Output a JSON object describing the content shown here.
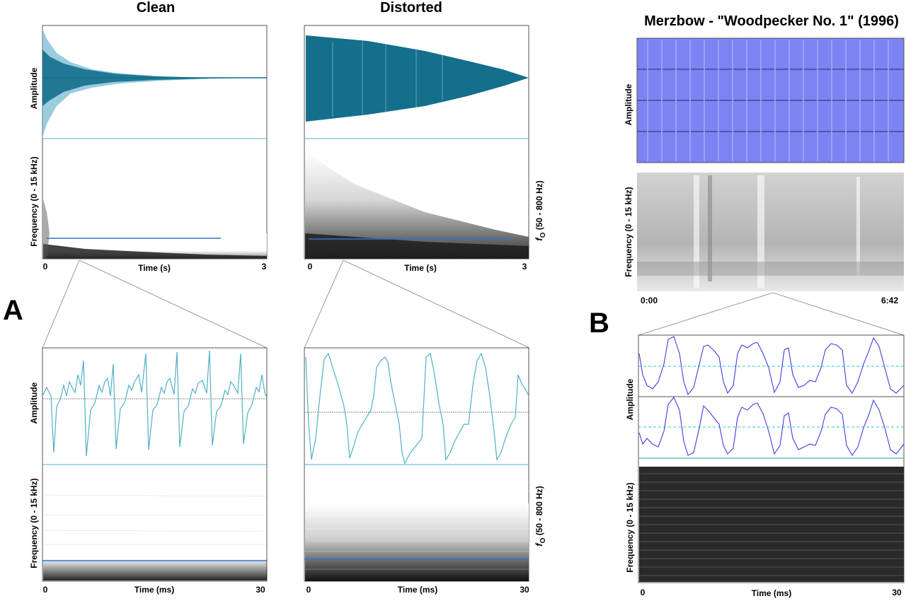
{
  "figure": {
    "panel_a_label": "A",
    "panel_b_label": "B",
    "clean_title": "Clean",
    "distorted_title": "Distorted",
    "merzbow_title": "Merzbow - \"Woodpecker No. 1\" (1996)",
    "amplitude_label": "Amplitude",
    "frequency_label": "Frequency (0 - 15 kHz)",
    "f0_symbol": "f",
    "f0_subscript": "O",
    "f0_range": "(50 - 800 Hz)",
    "time_s_label": "Time (s)",
    "time_ms_label": "Time (ms)",
    "tick_zero": "0",
    "tick_three": "3",
    "tick_thirty": "30",
    "tick_start": "0:00",
    "tick_end": "6:42"
  },
  "colors": {
    "waveform_teal": "#136f8c",
    "waveform_light": "#7fbfd4",
    "zoom_line": "#4fb0c6",
    "f0_line": "#2f74c9",
    "merz_blue": "#7c83f2",
    "merz_trace": "#3e3ee0",
    "dashed_cyan": "#2ec4e0"
  },
  "icons": [
    "none"
  ]
}
